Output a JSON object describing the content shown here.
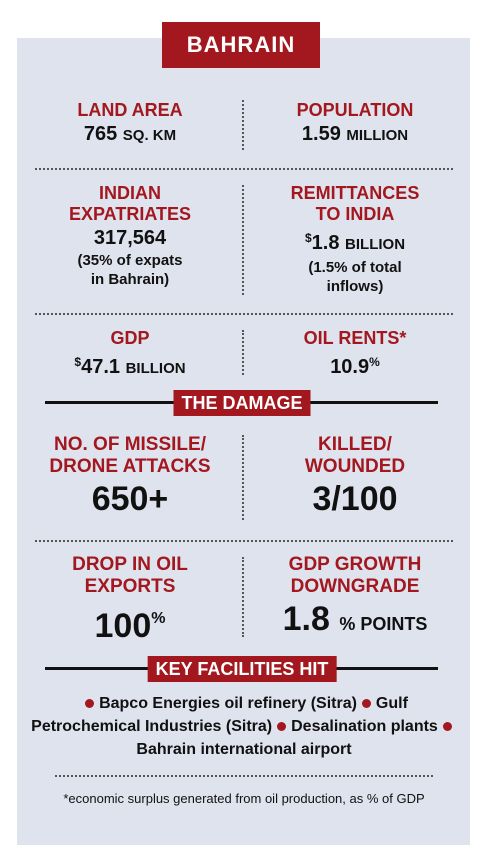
{
  "title": "BAHRAIN",
  "overview": [
    {
      "label": [
        "LAND AREA"
      ],
      "value": "765",
      "unit": "SQ. KM"
    },
    {
      "label": [
        "POPULATION"
      ],
      "value": "1.59",
      "unit": "MILLION"
    },
    {
      "label": [
        "INDIAN",
        "EXPATRIATES"
      ],
      "value": "317,564",
      "note": [
        "(35% of expats",
        "in Bahrain)"
      ]
    },
    {
      "label": [
        "REMITTANCES",
        "TO INDIA"
      ],
      "prefix": "$",
      "value": "1.8",
      "unit": "BILLION",
      "note": [
        "(1.5% of total",
        "inflows)"
      ]
    },
    {
      "label": [
        "GDP"
      ],
      "prefix": "$",
      "value": "47.1",
      "unit": "BILLION"
    },
    {
      "label": [
        "OIL RENTS*"
      ],
      "value": "10.9",
      "unit": "%"
    }
  ],
  "damage": {
    "title": "THE DAMAGE",
    "stats": [
      {
        "label": [
          "NO. OF MISSILE/",
          "DRONE ATTACKS"
        ],
        "value": "650+"
      },
      {
        "label": [
          "KILLED/",
          "WOUNDED"
        ],
        "value": "3/100"
      },
      {
        "label": [
          "DROP IN OIL",
          "EXPORTS"
        ],
        "value": "100",
        "unit": "%"
      },
      {
        "label": [
          "GDP GROWTH",
          "DOWNGRADE"
        ],
        "value": "1.8",
        "unit": "% POINTS"
      }
    ]
  },
  "facilities": {
    "title": "KEY FACILITIES HIT",
    "items": [
      "Bapco Energies oil refinery (Sitra)",
      "Gulf Petrochemical Industries (Sitra)",
      "Desalination plants",
      "Bahrain international airport"
    ]
  },
  "footnote": "*economic surplus generated from oil production, as % of GDP"
}
